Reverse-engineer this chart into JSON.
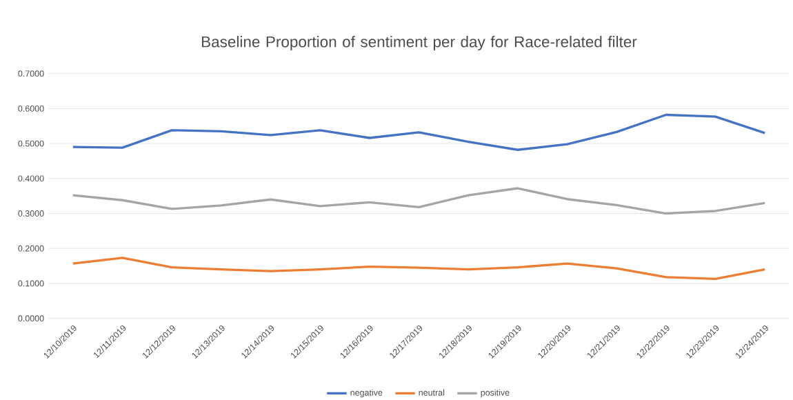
{
  "chart_data": {
    "type": "line",
    "title": "Baseline Proportion of sentiment per day for Race-related filter",
    "categories": [
      "12/10/2019",
      "12/11/2019",
      "12/12/2019",
      "12/13/2019",
      "12/14/2019",
      "12/15/2019",
      "12/16/2019",
      "12/17/2019",
      "12/18/2019",
      "12/19/2019",
      "12/20/2019",
      "12/21/2019",
      "12/22/2019",
      "12/23/2019",
      "12/24/2019"
    ],
    "series": [
      {
        "name": "negative",
        "color": "#4472c4",
        "values": [
          0.49,
          0.488,
          0.538,
          0.535,
          0.524,
          0.538,
          0.516,
          0.532,
          0.505,
          0.482,
          0.498,
          0.533,
          0.582,
          0.577,
          0.53
        ]
      },
      {
        "name": "neutral",
        "color": "#ed7d31",
        "values": [
          0.157,
          0.173,
          0.146,
          0.14,
          0.135,
          0.14,
          0.148,
          0.145,
          0.14,
          0.146,
          0.157,
          0.143,
          0.118,
          0.113,
          0.14
        ]
      },
      {
        "name": "positive",
        "color": "#a5a5a5",
        "values": [
          0.352,
          0.338,
          0.313,
          0.323,
          0.34,
          0.321,
          0.332,
          0.318,
          0.352,
          0.372,
          0.341,
          0.324,
          0.3,
          0.307,
          0.33
        ]
      }
    ],
    "ylim": [
      0,
      0.7
    ],
    "yticks": [
      {
        "value": 0,
        "label": "0.0000"
      },
      {
        "value": 0.1,
        "label": "0.1000"
      },
      {
        "value": 0.2,
        "label": "0.2000"
      },
      {
        "value": 0.3,
        "label": "0.3000"
      },
      {
        "value": 0.4,
        "label": "0.4000"
      },
      {
        "value": 0.5,
        "label": "0.5000"
      },
      {
        "value": 0.6,
        "label": "0.6000"
      },
      {
        "value": 0.7,
        "label": "0.7000"
      }
    ],
    "grid": "y",
    "legend": "bottom",
    "marker": "none",
    "line_style": "solid"
  }
}
